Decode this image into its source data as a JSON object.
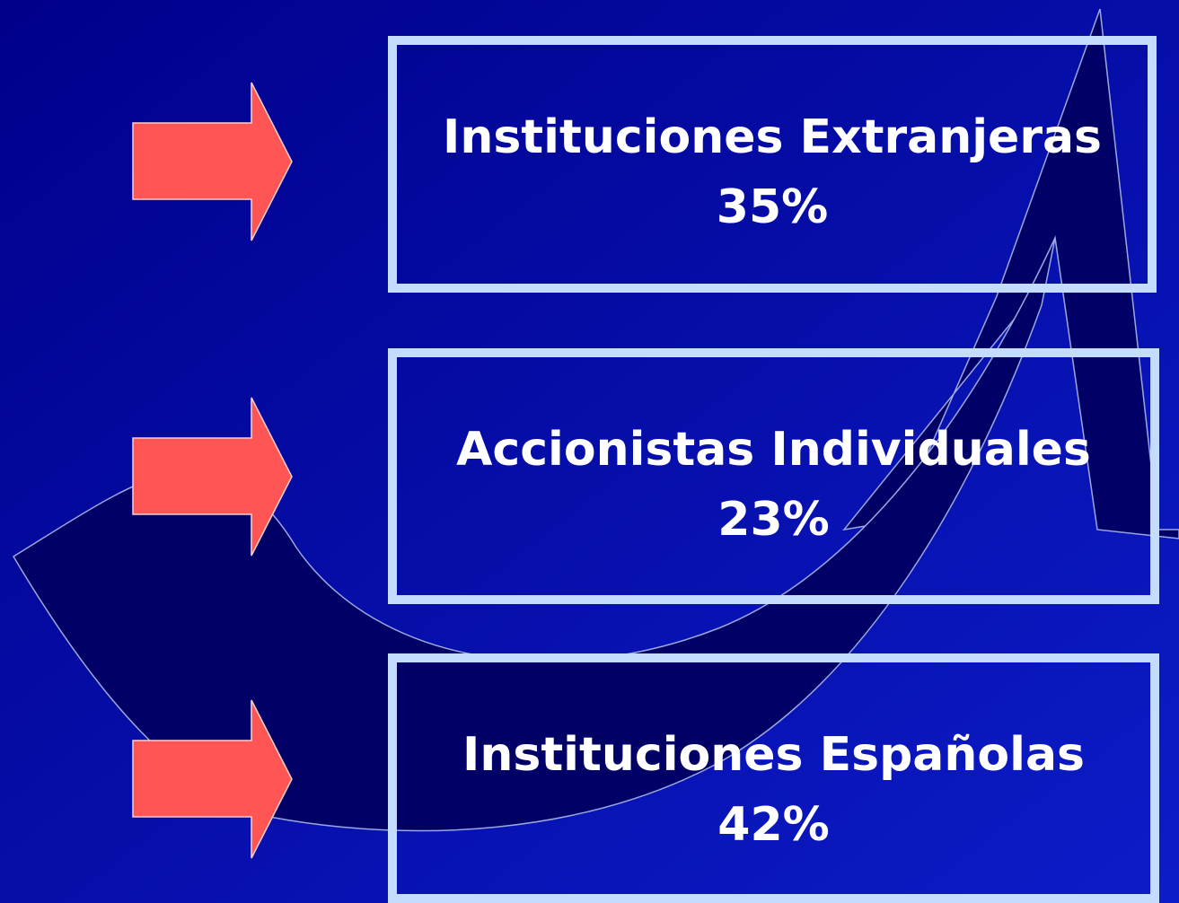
{
  "items": [
    {
      "label": "Instituciones Extranjeras",
      "value": "35%"
    },
    {
      "label": "Accionistas Individuales",
      "value": "23%"
    },
    {
      "label": "Instituciones Españolas",
      "value": "42%"
    }
  ]
}
